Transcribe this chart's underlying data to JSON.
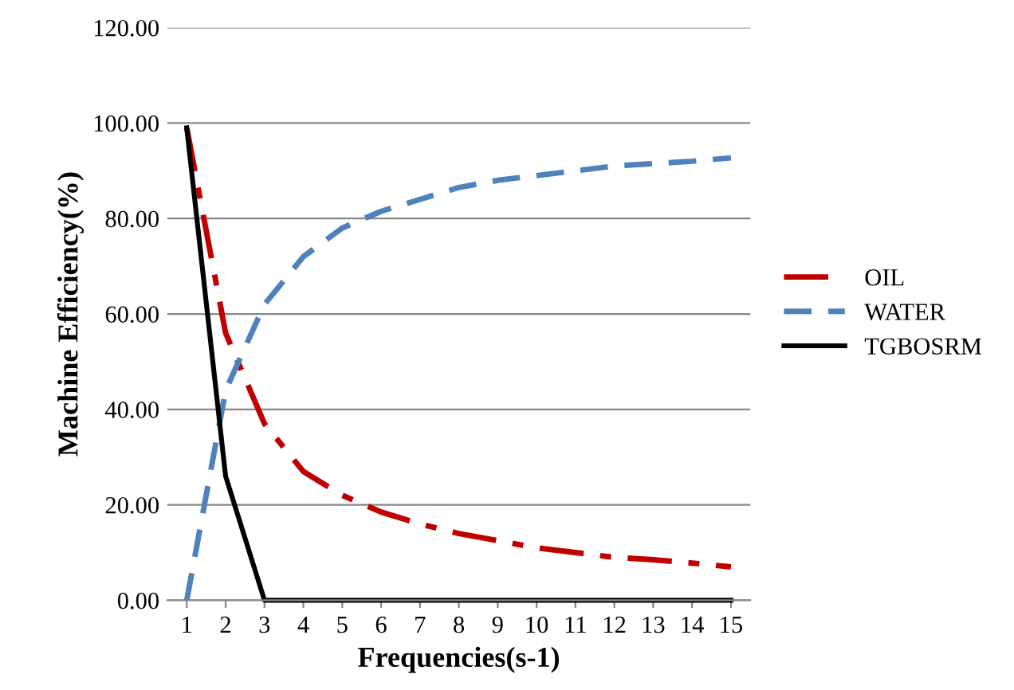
{
  "chart_data": {
    "type": "line",
    "xlabel": "Frequencies(s-1)",
    "ylabel": "Machine Efficiency(%)",
    "categories": [
      "1",
      "2",
      "3",
      "4",
      "5",
      "6",
      "7",
      "8",
      "9",
      "10",
      "11",
      "12",
      "13",
      "14",
      "15"
    ],
    "series": [
      {
        "name": "OIL",
        "color": "#c00000",
        "line_style": "dashdot",
        "values": [
          99,
          56,
          37,
          27,
          22,
          18.5,
          16,
          14,
          12.5,
          11,
          10,
          9,
          8.5,
          7.8,
          7
        ]
      },
      {
        "name": "WATER",
        "color": "#4f81bd",
        "line_style": "dashed",
        "values": [
          0,
          44,
          62,
          72,
          78,
          81.5,
          84,
          86.5,
          88,
          89,
          90,
          91,
          91.5,
          92,
          92.7
        ]
      },
      {
        "name": "TGBOSRM",
        "color": "#000000",
        "line_style": "solid",
        "values": [
          99,
          26,
          0,
          0,
          0,
          0,
          0,
          0,
          0,
          0,
          0,
          0,
          0,
          0,
          0
        ]
      }
    ],
    "ylim": [
      0,
      120
    ],
    "yticks": [
      {
        "value": 0,
        "label": "0.00"
      },
      {
        "value": 20,
        "label": "20.00"
      },
      {
        "value": 40,
        "label": "40.00"
      },
      {
        "value": 60,
        "label": "60.00"
      },
      {
        "value": 80,
        "label": "80.00"
      },
      {
        "value": 100,
        "label": "100.00"
      },
      {
        "value": 120,
        "label": "120.00"
      }
    ],
    "grid": "y",
    "legend": "right",
    "marker": "none"
  }
}
